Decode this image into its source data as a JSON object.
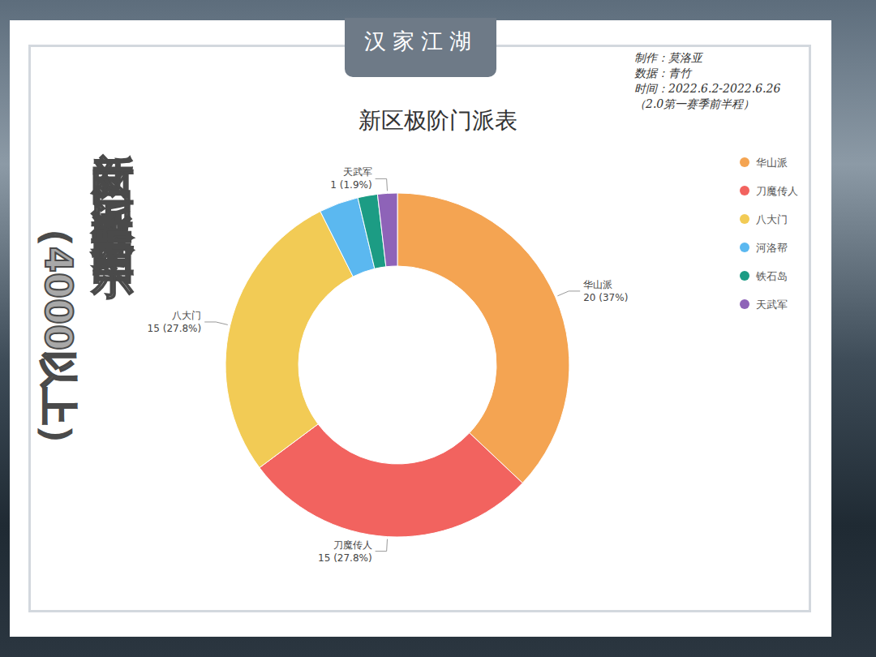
{
  "chart_data": {
    "type": "donut",
    "header": "汉家江湖",
    "credits": [
      "制作：莫洛亚",
      "数据：青竹",
      "时间：2022.6.2-2022.6.26（2.0第一赛季前半程）"
    ],
    "side_title": "新区门派数据图示",
    "side_subtitle": "（4000以上）",
    "title": "新区极阶门派表",
    "categories": [
      "华山派",
      "刀魔传人",
      "八大门",
      "河洛帮",
      "铁石岛",
      "天武军"
    ],
    "values": [
      20,
      15,
      15,
      2,
      1,
      1
    ],
    "value_labels": [
      "20 (37%)",
      "15 (27.8%)",
      "15 (27.8%)",
      null,
      null,
      "1 (1.9%)"
    ],
    "colors": [
      "#f4a452",
      "#f2635f",
      "#f2cb55",
      "#5bb8f0",
      "#1c9c84",
      "#8e63b8"
    ],
    "data_labels": true,
    "legend": "right"
  }
}
